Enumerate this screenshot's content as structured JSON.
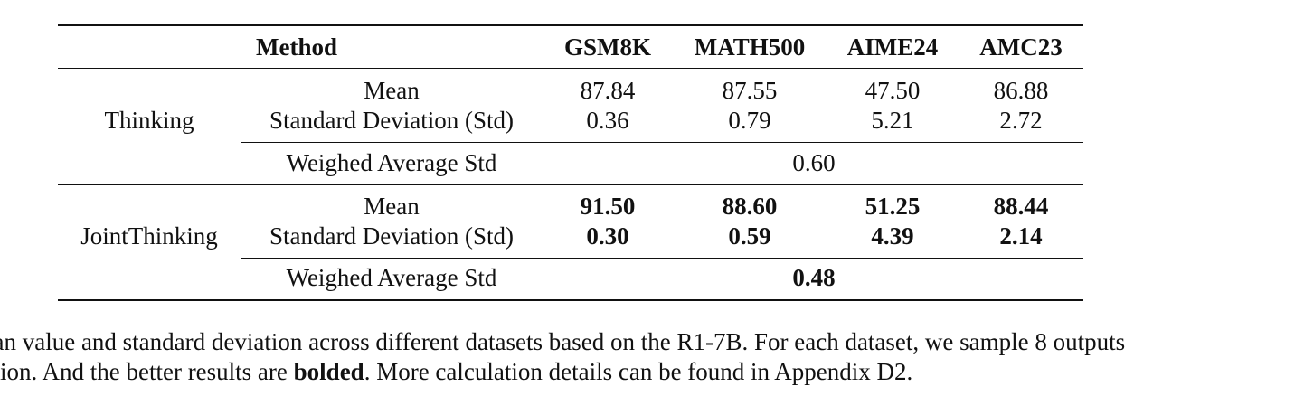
{
  "table": {
    "header": {
      "method": "Method",
      "datasets": [
        "GSM8K",
        "MATH500",
        "AIME24",
        "AMC23"
      ]
    },
    "groups": [
      {
        "name": "Thinking",
        "mean_label": "Mean",
        "std_label": "Standard Deviation (Std)",
        "mean": [
          "87.84",
          "87.55",
          "47.50",
          "86.88"
        ],
        "std": [
          "0.36",
          "0.79",
          "5.21",
          "2.72"
        ],
        "weighted_label": "Weighed Average Std",
        "weighted": "0.60",
        "bold": false
      },
      {
        "name": "JointThinking",
        "mean_label": "Mean",
        "std_label": "Standard Deviation (Std)",
        "mean": [
          "91.50",
          "88.60",
          "51.25",
          "88.44"
        ],
        "std": [
          "0.30",
          "0.59",
          "4.39",
          "2.14"
        ],
        "weighted_label": "Weighed Average Std",
        "weighted": "0.48",
        "bold": true
      }
    ]
  },
  "caption": {
    "line1": "lean value and standard deviation across different datasets based on the R1-7B. For each dataset, we sample 8 outputs",
    "line2_before": "tation. And the better results are ",
    "line2_bold": "bolded",
    "line2_after": ". More calculation details can be found in Appendix D2."
  }
}
